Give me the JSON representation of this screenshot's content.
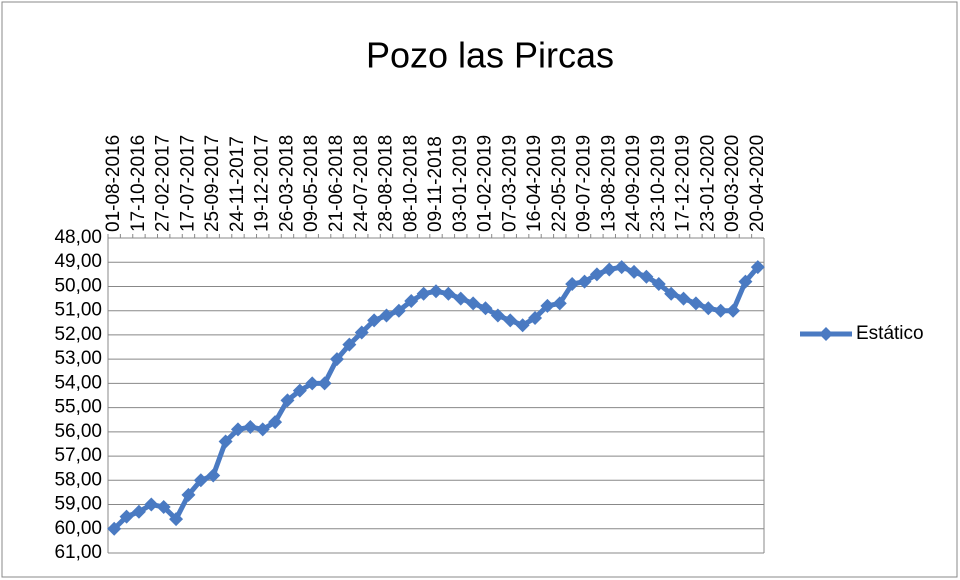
{
  "chart_data": {
    "type": "line",
    "title": "Pozo las Pircas",
    "categories": [
      "01-08-2016",
      null,
      "17-10-2016",
      null,
      "27-02-2017",
      null,
      "17-07-2017",
      null,
      "25-09-2017",
      null,
      "24-11-2017",
      null,
      "19-12-2017",
      null,
      "26-03-2018",
      null,
      "09-05-2018",
      null,
      "21-06-2018",
      null,
      "24-07-2018",
      null,
      "28-08-2018",
      null,
      "08-10-2018",
      null,
      "09-11-2018",
      null,
      "03-01-2019",
      null,
      "01-02-2019",
      null,
      "07-03-2019",
      null,
      "16-04-2019",
      null,
      "22-05-2019",
      null,
      "09-07-2019",
      null,
      "13-08-2019",
      null,
      "24-09-2019",
      null,
      "23-10-2019",
      null,
      "17-12-2019",
      null,
      "23-01-2020",
      null,
      "09-03-2020",
      null,
      "20-04-2020"
    ],
    "series": [
      {
        "name": "Estático",
        "color": "#4a7ac2",
        "values": [
          60.0,
          59.5,
          59.3,
          59.0,
          59.1,
          59.6,
          58.6,
          58.0,
          57.8,
          56.4,
          55.9,
          55.8,
          55.9,
          55.6,
          54.7,
          54.3,
          54.0,
          54.0,
          53.0,
          52.4,
          51.9,
          51.4,
          51.2,
          51.0,
          50.6,
          50.3,
          50.2,
          50.3,
          50.5,
          50.7,
          50.9,
          51.2,
          51.4,
          51.6,
          51.3,
          50.8,
          50.7,
          49.9,
          49.8,
          49.5,
          49.3,
          49.2,
          49.4,
          49.6,
          49.9,
          50.3,
          50.5,
          50.7,
          50.9,
          51.0,
          51.0,
          49.8,
          49.2
        ]
      }
    ],
    "ylim": [
      48,
      61
    ],
    "y_inverted": true,
    "grid": true,
    "legend": "right",
    "yticks": [
      {
        "value": 48,
        "label": "48,00"
      },
      {
        "value": 49,
        "label": "49,00"
      },
      {
        "value": 50,
        "label": "50,00"
      },
      {
        "value": 51,
        "label": "51,00"
      },
      {
        "value": 52,
        "label": "52,00"
      },
      {
        "value": 53,
        "label": "53,00"
      },
      {
        "value": 54,
        "label": "54,00"
      },
      {
        "value": 55,
        "label": "55,00"
      },
      {
        "value": 56,
        "label": "56,00"
      },
      {
        "value": 57,
        "label": "57,00"
      },
      {
        "value": 58,
        "label": "58,00"
      },
      {
        "value": 59,
        "label": "59,00"
      },
      {
        "value": 60,
        "label": "60,00"
      },
      {
        "value": 61,
        "label": "61,00"
      }
    ]
  }
}
